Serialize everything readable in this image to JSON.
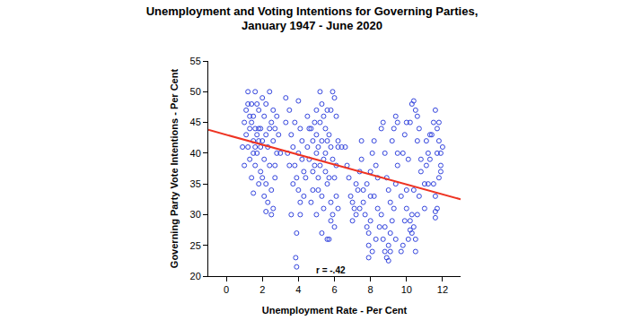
{
  "chart_data": {
    "type": "scatter",
    "title": "Unemployment and Voting Intentions for Governing Parties,\nJanuary 1947 - June 2020",
    "x_label": "Unemployment Rate - Per Cent",
    "y_label": "Governing Party Vote Intentions - Per Cent",
    "xlim": [
      -1,
      13
    ],
    "xticks": [
      0,
      2,
      4,
      6,
      8,
      10,
      12
    ],
    "ylim": [
      20,
      55
    ],
    "yticks": [
      20,
      25,
      30,
      35,
      40,
      45,
      50,
      55
    ],
    "grid": false,
    "annotations": [
      {
        "text": "r = -.42",
        "x": 5.8,
        "y": 21
      }
    ],
    "series": [
      {
        "type": "scatter",
        "color": "#3344dd",
        "marker": "circle-open",
        "x": [
          1.0,
          1.1,
          1.2,
          1.3,
          1.4,
          1.5,
          1.5,
          1.6,
          1.7,
          1.8,
          1.2,
          1.3,
          1.4,
          1.5,
          1.6,
          1.7,
          1.8,
          1.9,
          2.0,
          2.1,
          2.2,
          2.3,
          2.4,
          2.5,
          2.6,
          2.7,
          2.8,
          2.0,
          1.9,
          2.1,
          1.1,
          1.4,
          1.6,
          1.8,
          2.2,
          2.4,
          2.5,
          2.6,
          2.7,
          2.3,
          0.9,
          1.0,
          1.3,
          1.5,
          1.7,
          1.9,
          2.0,
          2.2,
          2.4,
          2.6,
          2.8,
          2.9,
          3.0,
          2.2,
          2.5,
          1.6,
          1.2,
          2.1,
          2.7,
          1.8,
          3.3,
          3.5,
          3.6,
          3.7,
          3.8,
          3.9,
          4.0,
          4.1,
          3.4,
          3.6,
          3.9,
          3.85,
          3.9,
          4.0,
          4.1,
          4.2,
          4.2,
          4.3,
          3.8,
          4.0,
          3.7,
          4.1,
          3.5,
          4.3,
          3.3,
          4.5,
          4.6,
          4.7,
          4.8,
          4.9,
          5.0,
          5.1,
          5.2,
          5.3,
          5.4,
          5.5,
          5.2,
          5.3,
          5.4,
          5.5,
          5.6,
          5.3,
          5.4,
          5.6,
          5.7,
          5.8,
          5.9,
          6.0,
          6.1,
          5.9,
          6.0,
          6.1,
          5.8,
          5.9,
          6.0,
          5.7,
          5.8,
          4.6,
          4.8,
          5.0,
          5.1,
          4.9,
          4.7,
          4.8,
          5.0,
          5.1,
          5.2,
          5.5,
          5.6,
          4.4,
          4.5,
          6.2,
          6.1,
          5.7,
          6.2,
          5.3,
          5.6,
          6.2,
          5.8,
          5.0,
          6.4,
          6.6,
          6.8,
          6.9,
          7.0,
          7.1,
          7.2,
          7.3,
          7.4,
          7.5,
          7.6,
          7.7,
          7.8,
          7.9,
          7.9,
          7.8,
          8.0,
          8.1,
          8.2,
          8.0,
          7.6,
          7.9,
          8.0,
          8.3,
          8.4,
          8.4,
          8.5,
          8.3,
          7.2,
          7.0,
          6.7,
          7.5,
          8.1,
          8.2,
          7.4,
          8.6,
          8.7,
          8.8,
          8.9,
          9.0,
          9.1,
          8.7,
          8.8,
          8.9,
          9.0,
          9.1,
          9.2,
          9.3,
          9.4,
          9.5,
          9.3,
          9.4,
          9.2,
          8.6,
          9.5,
          8.8,
          9.0,
          9.1,
          9.4,
          9.5,
          9.7,
          9.8,
          9.9,
          10.0,
          10.1,
          10.2,
          10.3,
          10.4,
          10.5,
          10.2,
          10.3,
          10.4,
          10.5,
          10.6,
          10.7,
          10.8,
          10.6,
          10.7,
          10.0,
          10.1,
          9.8,
          9.9,
          10.5,
          10.3,
          10.8,
          10.6,
          10.0,
          10.4,
          9.7,
          10.2,
          11.0,
          11.1,
          11.2,
          11.3,
          11.5,
          11.6,
          11.7,
          11.8,
          11.9,
          11.5,
          11.6,
          11.7,
          11.6,
          11.8,
          11.9,
          12.0,
          11.4,
          11.2,
          11.0,
          11.7,
          11.8,
          11.9,
          11.3,
          11.1,
          11.6
        ],
        "values": [
          45,
          47,
          50,
          44,
          48,
          42,
          46,
          50,
          43,
          47,
          41,
          39,
          36,
          33.5,
          38,
          40,
          35,
          44,
          49,
          46,
          43,
          41,
          38,
          45,
          47,
          44,
          40,
          42,
          37,
          39,
          43,
          45,
          41,
          44,
          48,
          50,
          34,
          31,
          36,
          32,
          41,
          38,
          46,
          40,
          48,
          41,
          36,
          35,
          44,
          42,
          46,
          43,
          40,
          30.5,
          30,
          44,
          48,
          33,
          38,
          42,
          49,
          47,
          43,
          41,
          38,
          36,
          34,
          32,
          40,
          30,
          27,
          23,
          21.5,
          48.5,
          44,
          42,
          39,
          37,
          45,
          40,
          35,
          30,
          38,
          33,
          45,
          41,
          39,
          44,
          42,
          38,
          40,
          36,
          50,
          48,
          46,
          44,
          45,
          42,
          39,
          37,
          35,
          33,
          31,
          47,
          43,
          41,
          50,
          49,
          46,
          39,
          36,
          33,
          32,
          30,
          28,
          26,
          29,
          44,
          37,
          43,
          41,
          45,
          32,
          34,
          30,
          34,
          38,
          40,
          42,
          36,
          46,
          41,
          38,
          36,
          31,
          27,
          26,
          42,
          47,
          47,
          41,
          41,
          36,
          33,
          32,
          31,
          30,
          34,
          37,
          39,
          32,
          30,
          28,
          25,
          23,
          35,
          37,
          40,
          42,
          29,
          34,
          27,
          33,
          38,
          36,
          31,
          28,
          26,
          35,
          29,
          38,
          42,
          24,
          33,
          31,
          44,
          45,
          40,
          36,
          34,
          32,
          26,
          24,
          23,
          25,
          27,
          29,
          31,
          35,
          38,
          44,
          46,
          42,
          30,
          40,
          28,
          22.5,
          24,
          26,
          45,
          24,
          25,
          29,
          34,
          39,
          45,
          48,
          48.5,
          47,
          29,
          27,
          28,
          26,
          30,
          33,
          37,
          42,
          44,
          31,
          26,
          40,
          43,
          24,
          30,
          39,
          46,
          45,
          34,
          33,
          27.5,
          35,
          38,
          40,
          43,
          45,
          47,
          44,
          42,
          40,
          35,
          33,
          31,
          29.5,
          36,
          38,
          41,
          43,
          35,
          31,
          40,
          45,
          37,
          39,
          42,
          30.5
        ]
      },
      {
        "type": "line",
        "color": "#ee3322",
        "line_style": "solid",
        "x": [
          -1,
          13
        ],
        "values": [
          43.8,
          32.5
        ]
      }
    ]
  }
}
